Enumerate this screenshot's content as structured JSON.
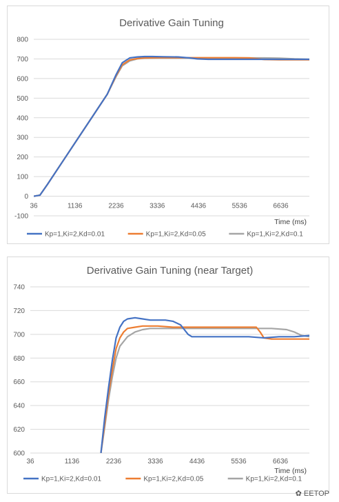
{
  "chart_data": [
    {
      "type": "line",
      "title": "Derivative Gain Tuning",
      "xlabel": "Time (ms)",
      "ylabel": "",
      "ylim": [
        -100,
        800
      ],
      "yticks": [
        -100,
        0,
        100,
        200,
        300,
        400,
        500,
        600,
        700,
        800
      ],
      "xlim": [
        36,
        7400
      ],
      "xticks": [
        36,
        1136,
        2236,
        3336,
        4436,
        5536,
        6636
      ],
      "grid": true,
      "legend": "bottom",
      "series": [
        {
          "name": "Kp=1,Ki=2,Kd=0.01",
          "color": "#4472C4",
          "x": [
            36,
            200,
            400,
            800,
            1200,
            1600,
            2000,
            2236,
            2400,
            2600,
            2800,
            3000,
            3200,
            3500,
            3900,
            4200,
            4400,
            4700,
            5200,
            5600,
            6000,
            6400,
            6800,
            7400
          ],
          "y": [
            0,
            5,
            60,
            175,
            290,
            405,
            520,
            620,
            680,
            705,
            710,
            712,
            712,
            711,
            710,
            705,
            700,
            698,
            698,
            698,
            698,
            698,
            698,
            698
          ]
        },
        {
          "name": "Kp=1,Ki=2,Kd=0.05",
          "color": "#ED7D31",
          "x": [
            36,
            200,
            400,
            800,
            1200,
            1600,
            2000,
            2236,
            2400,
            2600,
            2800,
            3000,
            3400,
            3800,
            4200,
            4600,
            5000,
            5400,
            5800,
            6200,
            6600,
            7000,
            7400
          ],
          "y": [
            0,
            5,
            60,
            175,
            290,
            405,
            520,
            615,
            670,
            695,
            702,
            705,
            706,
            706,
            706,
            706,
            706,
            706,
            705,
            697,
            696,
            696,
            696
          ]
        },
        {
          "name": "Kp=1,Ki=2,Kd=0.1",
          "color": "#A5A5A5",
          "x": [
            36,
            200,
            400,
            800,
            1200,
            1600,
            2000,
            2236,
            2400,
            2600,
            2800,
            3000,
            3400,
            3800,
            4200,
            4600,
            5000,
            5400,
            5800,
            6200,
            6600,
            7000,
            7400
          ],
          "y": [
            0,
            5,
            60,
            175,
            290,
            405,
            520,
            610,
            665,
            690,
            700,
            704,
            705,
            705,
            705,
            705,
            705,
            705,
            705,
            705,
            704,
            700,
            698
          ]
        }
      ]
    },
    {
      "type": "line",
      "title": "Derivative Gain Tuning (near Target)",
      "xlabel": "Time (ms)",
      "ylabel": "",
      "ylim": [
        600,
        740
      ],
      "yticks": [
        600,
        620,
        640,
        660,
        680,
        700,
        720,
        740
      ],
      "xlim": [
        36,
        7400
      ],
      "xticks": [
        36,
        1136,
        2236,
        3336,
        4436,
        5536,
        6636
      ],
      "grid": true,
      "legend": "bottom",
      "series": [
        {
          "name": "Kp=1,Ki=2,Kd=0.01",
          "color": "#4472C4",
          "x": [
            1900,
            2000,
            2100,
            2200,
            2300,
            2400,
            2500,
            2600,
            2800,
            3000,
            3200,
            3400,
            3600,
            3800,
            4000,
            4100,
            4200,
            4300,
            4400,
            4700,
            5000,
            5400,
            5800,
            6200,
            6600,
            7000,
            7400
          ],
          "y": [
            600,
            630,
            655,
            678,
            697,
            706,
            711,
            713,
            714,
            713,
            712,
            712,
            712,
            711,
            708,
            704,
            700,
            698,
            698,
            698,
            698,
            698,
            698,
            697,
            698,
            698,
            699
          ]
        },
        {
          "name": "Kp=1,Ki=2,Kd=0.05",
          "color": "#ED7D31",
          "x": [
            1900,
            2000,
            2100,
            2200,
            2300,
            2400,
            2500,
            2600,
            2800,
            3000,
            3200,
            3400,
            3800,
            4200,
            4600,
            5000,
            5400,
            5800,
            6000,
            6100,
            6200,
            6400,
            6800,
            7200,
            7400
          ],
          "y": [
            600,
            625,
            650,
            670,
            688,
            697,
            702,
            705,
            706,
            707,
            707,
            707,
            706,
            706,
            706,
            706,
            706,
            706,
            706,
            702,
            697,
            696,
            696,
            696,
            696
          ]
        },
        {
          "name": "Kp=1,Ki=2,Kd=0.1",
          "color": "#A5A5A5",
          "x": [
            1900,
            2000,
            2100,
            2200,
            2300,
            2400,
            2600,
            2800,
            3000,
            3200,
            3600,
            4000,
            4400,
            4800,
            5200,
            5600,
            6000,
            6400,
            6800,
            7000,
            7200,
            7400
          ],
          "y": [
            600,
            622,
            645,
            664,
            680,
            690,
            698,
            702,
            704,
            705,
            705,
            705,
            705,
            705,
            705,
            705,
            705,
            705,
            704,
            702,
            699,
            698
          ]
        }
      ]
    }
  ],
  "watermark": "EETOP"
}
